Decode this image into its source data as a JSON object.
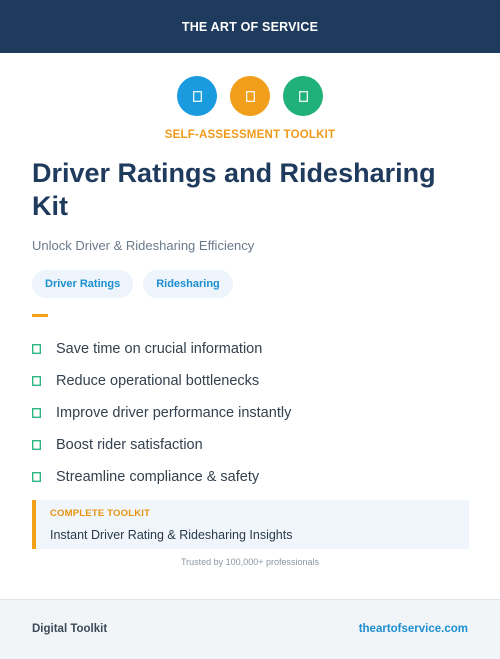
{
  "header": {
    "title": "THE ART OF SERVICE"
  },
  "icons": [
    {
      "name": "doc-icon-blue",
      "color": "#1a9be0"
    },
    {
      "name": "doc-icon-orange",
      "color": "#f19e1b"
    },
    {
      "name": "doc-icon-green",
      "color": "#20b07a"
    }
  ],
  "eyebrow": {
    "text": "SELF-ASSESSMENT TOOLKIT",
    "color": "#f09a1a"
  },
  "title": "Driver Ratings and Ridesharing Kit",
  "subtitle": "Unlock Driver & Ridesharing Efficiency",
  "tags": [
    "Driver Ratings",
    "Ridesharing"
  ],
  "features": [
    "Save time on crucial information",
    "Reduce operational bottlenecks",
    "Improve driver performance instantly",
    "Boost rider satisfaction",
    "Streamline compliance & safety"
  ],
  "callout": {
    "label": "COMPLETE TOOLKIT",
    "value": "Instant Driver Rating & Ridesharing Insights"
  },
  "trust": "Trusted by 100,000+ professionals",
  "footer": {
    "left": "Digital Toolkit",
    "right": "theartofservice.com"
  },
  "colors": {
    "navy": "#1e3a5c",
    "accent": "#f4a11a",
    "check": "#20b07a",
    "link": "#1c8fd0"
  }
}
